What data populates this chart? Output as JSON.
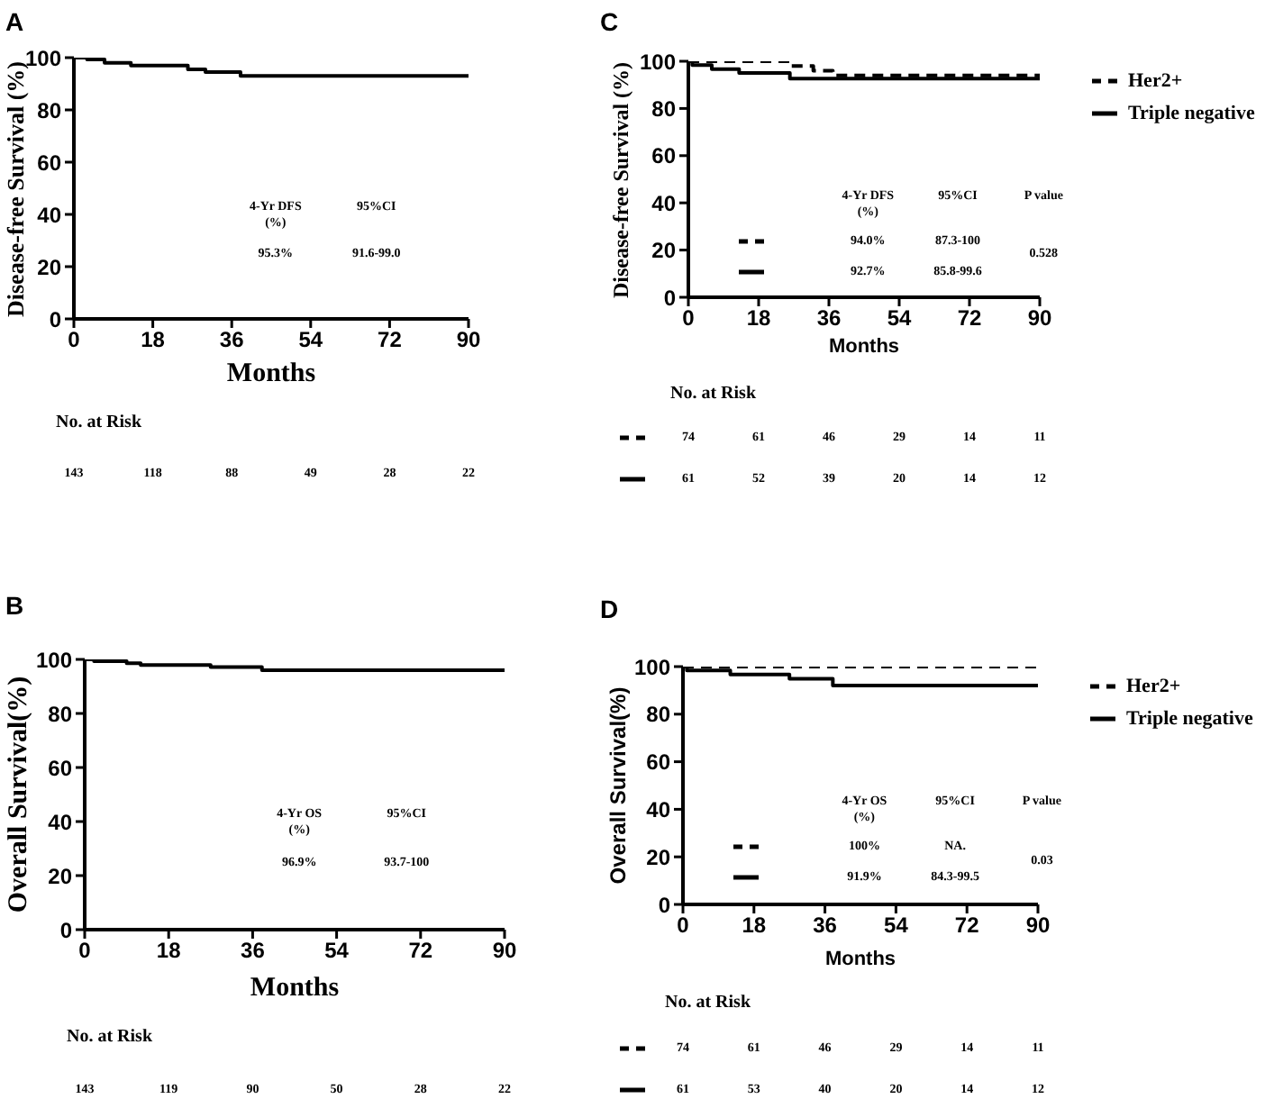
{
  "chart_data": [
    {
      "type": "step",
      "title": "A",
      "xlabel": "Months",
      "ylabel": "Disease-free Survival (%)",
      "xlim": [
        0,
        90
      ],
      "xticks": [
        0,
        18,
        36,
        54,
        72,
        90
      ],
      "ylim": [
        0,
        100
      ],
      "yticks": [
        0,
        20,
        40,
        60,
        80,
        100
      ],
      "legend": false,
      "marker": "none",
      "series": [
        {
          "color": "#000000",
          "line_style": "solid",
          "x": [
            0,
            3,
            7,
            13,
            26,
            30,
            38,
            90
          ],
          "values": [
            100,
            99.3,
            98,
            97,
            95.5,
            94.5,
            93,
            93
          ]
        }
      ],
      "annotations": [
        "4-Yr DFS",
        "(%)",
        "95%CI",
        "95.3%",
        "91.6-99.0",
        "No. at Risk",
        "143",
        "118",
        "88",
        "49",
        "28",
        "22"
      ]
    },
    {
      "type": "step",
      "title": "C",
      "xlabel": "Months",
      "ylabel": "Disease-free Survival (%)",
      "xlim": [
        0,
        90
      ],
      "xticks": [
        0,
        18,
        36,
        54,
        72,
        90
      ],
      "ylim": [
        0,
        100
      ],
      "yticks": [
        0,
        20,
        40,
        60,
        80,
        100
      ],
      "legend": "right",
      "marker": "none",
      "series": [
        {
          "name": "Her2+",
          "color": "#000000",
          "line_style": "dashed",
          "x": [
            0,
            26,
            32,
            37,
            90
          ],
          "values": [
            100,
            98,
            96,
            94,
            94
          ]
        },
        {
          "name": "Triple negative",
          "color": "#000000",
          "line_style": "solid",
          "x": [
            0,
            1,
            6,
            13,
            26,
            90
          ],
          "values": [
            100,
            98.4,
            96.7,
            95,
            92.7,
            92.7
          ]
        }
      ],
      "annotations": [
        "4-Yr DFS",
        "(%)",
        "95%CI",
        "P value",
        "94.0%",
        "87.3-100",
        "92.7%",
        "85.8-99.6",
        "0.528",
        "No. at Risk",
        "74",
        "61",
        "46",
        "29",
        "14",
        "11",
        "61",
        "52",
        "39",
        "20",
        "14",
        "12"
      ]
    },
    {
      "type": "step",
      "title": "B",
      "xlabel": "Months",
      "ylabel": "Overall Survival(%)",
      "xlim": [
        0,
        90
      ],
      "xticks": [
        0,
        18,
        36,
        54,
        72,
        90
      ],
      "ylim": [
        0,
        100
      ],
      "yticks": [
        0,
        20,
        40,
        60,
        80,
        100
      ],
      "legend": false,
      "marker": "none",
      "series": [
        {
          "color": "#000000",
          "line_style": "solid",
          "x": [
            0,
            2,
            9,
            12,
            27,
            38,
            90
          ],
          "values": [
            100,
            99.3,
            98.6,
            97.9,
            97.2,
            96,
            96
          ]
        }
      ],
      "annotations": [
        "4-Yr OS",
        "(%)",
        "95%CI",
        "96.9%",
        "93.7-100",
        "No. at Risk",
        "143",
        "119",
        "90",
        "50",
        "28",
        "22"
      ]
    },
    {
      "type": "step",
      "title": "D",
      "xlabel": "Months",
      "ylabel": "Overall Survival(%)",
      "xlim": [
        0,
        90
      ],
      "xticks": [
        0,
        18,
        36,
        54,
        72,
        90
      ],
      "ylim": [
        0,
        100
      ],
      "yticks": [
        0,
        20,
        40,
        60,
        80,
        100
      ],
      "legend": "right",
      "marker": "none",
      "series": [
        {
          "name": "Her2+",
          "color": "#000000",
          "line_style": "dashed",
          "x": [
            0,
            90
          ],
          "values": [
            100,
            100
          ]
        },
        {
          "name": "Triple negative",
          "color": "#000000",
          "line_style": "solid",
          "x": [
            0,
            1,
            12,
            27,
            38,
            90
          ],
          "values": [
            100,
            98.4,
            96.7,
            94.9,
            92,
            92
          ]
        }
      ],
      "annotations": [
        "4-Yr OS",
        "(%)",
        "95%CI",
        "P value",
        "100%",
        "NA.",
        "91.9%",
        "84.3-99.5",
        "0.03",
        "No. at Risk",
        "74",
        "61",
        "46",
        "29",
        "14",
        "11",
        "61",
        "53",
        "40",
        "20",
        "14",
        "12"
      ]
    }
  ]
}
